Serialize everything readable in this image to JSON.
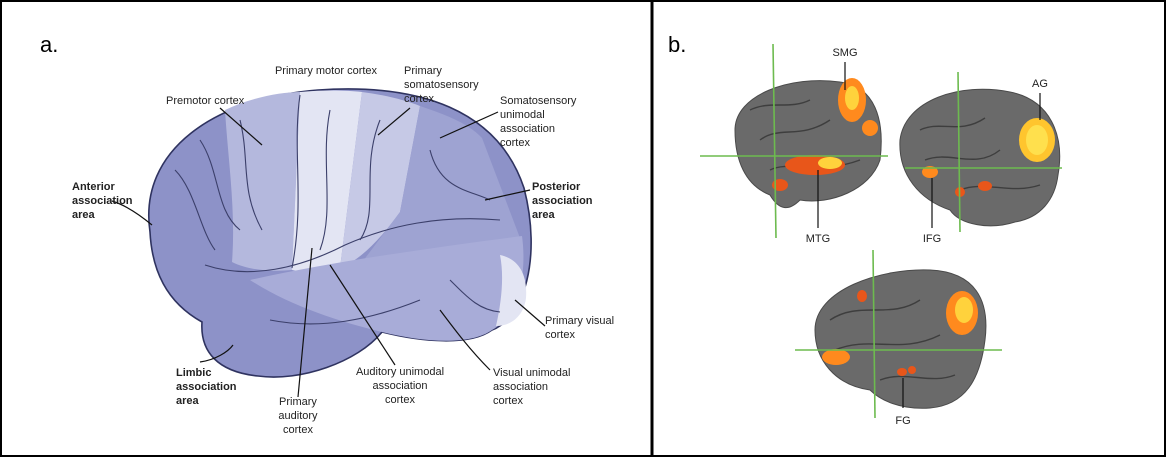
{
  "panel_a": {
    "label": "a.",
    "regions": [
      {
        "lines": [
          "Primary motor cortex"
        ],
        "bold": false
      },
      {
        "lines": [
          "Primary",
          "somatosensory",
          "cortex"
        ],
        "bold": false
      },
      {
        "lines": [
          "Premotor cortex"
        ],
        "bold": false
      },
      {
        "lines": [
          "Somatosensory",
          "unimodal",
          "association",
          "cortex"
        ],
        "bold": false
      },
      {
        "lines": [
          "Anterior",
          "association",
          "area"
        ],
        "bold": true
      },
      {
        "lines": [
          "Posterior",
          "association",
          "area"
        ],
        "bold": true
      },
      {
        "lines": [
          "Primary visual",
          "cortex"
        ],
        "bold": false
      },
      {
        "lines": [
          "Limbic",
          "association",
          "area"
        ],
        "bold": true
      },
      {
        "lines": [
          "Primary",
          "auditory",
          "cortex"
        ],
        "bold": false
      },
      {
        "lines": [
          "Auditory unimodal",
          "association",
          "cortex"
        ],
        "bold": false
      },
      {
        "lines": [
          "Visual unimodal",
          "association",
          "cortex"
        ],
        "bold": false
      }
    ]
  },
  "panel_b": {
    "label": "b.",
    "regions": [
      "SMG",
      "AG",
      "MTG",
      "IFG",
      "FG"
    ]
  }
}
